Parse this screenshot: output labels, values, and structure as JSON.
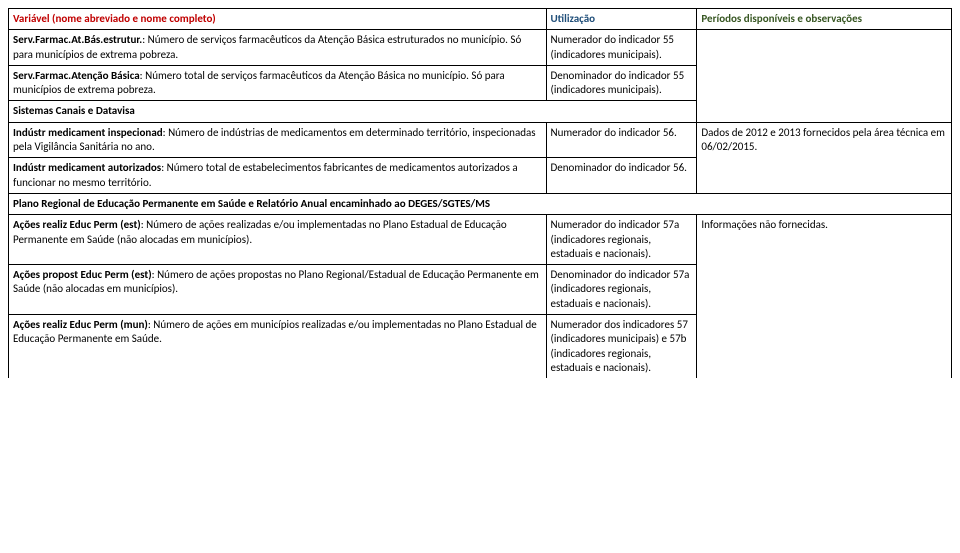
{
  "header": {
    "col1": "Variável (nome abreviado e nome completo)",
    "col2": "Utilização",
    "col3": "Períodos disponíveis e observações"
  },
  "rows": [
    {
      "bold_prefix": "Serv.Farmac.At.Bás.estrutur.",
      "text": ": Número de serviços farmacêuticos da Atenção Básica estruturados no município. Só para municípios de extrema pobreza.",
      "usage": "Numerador do indicador 55 (indicadores municipais)."
    },
    {
      "bold_prefix": "Serv.Farmac.Atenção Básica",
      "text": ": Número total de serviços farmacêuticos da Atenção Básica no município. Só para municípios de extrema pobreza.",
      "usage": "Denominador do indicador 55 (indicadores municipais)."
    }
  ],
  "section1": "Sistemas Canais e Datavisa",
  "rows2": [
    {
      "bold_prefix": "Indústr medicament inspecionad",
      "text": ": Número de indústrias de medicamentos em determinado território, inspecionadas pela Vigilância Sanitária no ano.",
      "usage": "Numerador do indicador 56.",
      "obs": "Dados de 2012 e 2013 fornecidos pela área técnica em 06/02/2015."
    },
    {
      "bold_prefix": "Indústr medicament autorizados",
      "text": ": Número total de estabelecimentos fabricantes de medicamentos autorizados a funcionar no mesmo território.",
      "usage": "Denominador do indicador 56."
    }
  ],
  "section2": "Plano Regional de Educação Permanente em Saúde e Relatório Anual encaminhado ao DEGES/SGTES/MS",
  "rows3": [
    {
      "bold_prefix": "Ações realiz Educ Perm (est)",
      "text": ": Número de ações realizadas e/ou implementadas no Plano Estadual de Educação Permanente em Saúde (não alocadas em municípios).",
      "usage": "Numerador do indicador 57a (indicadores regionais, estaduais e nacionais).",
      "obs": "Informações não fornecidas."
    },
    {
      "bold_prefix": "Ações propost Educ Perm (est)",
      "text": ": Número de ações propostas no Plano Regional/Estadual de Educação Permanente em Saúde (não alocadas em municípios).",
      "usage": "Denominador do indicador 57a (indicadores regionais, estaduais e nacionais)."
    },
    {
      "bold_prefix": "Ações realiz Educ Perm (mun)",
      "text": ": Número de ações em municípios realizadas e/ou implementadas no Plano Estadual de Educação Permanente em Saúde.",
      "usage": "Numerador dos indicadores 57 (indicadores municipais) e 57b (indicadores regionais, estaduais e nacionais)."
    }
  ]
}
